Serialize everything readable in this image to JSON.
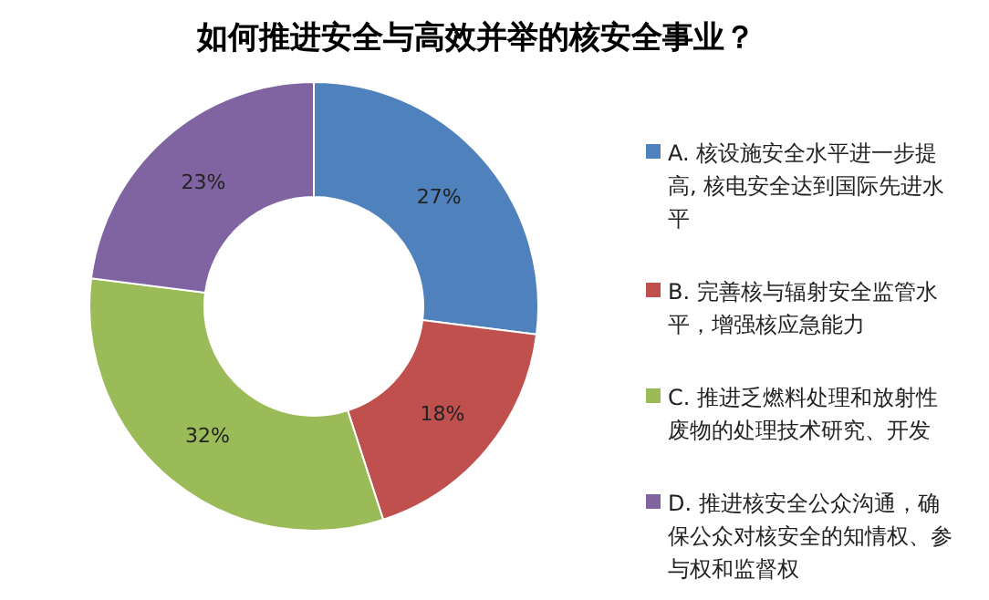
{
  "chart_data": {
    "type": "donut",
    "title": "如何推进安全与高效并举的核安全事业？",
    "categories": [
      "A. 核设施安全水平进一步提高, 核电安全达到国际先进水平",
      "B. 完善核与辐射安全监管水平，增强核应急能力",
      "C. 推进乏燃料处理和放射性废物的处理技术研究、开发",
      "D. 推进核安全公众沟通，确保公众对核安全的知情权、参与权和监督权"
    ],
    "values": [
      27,
      18,
      32,
      23
    ],
    "value_labels": [
      "27%",
      "18%",
      "32%",
      "23%"
    ],
    "colors": [
      "#4f81bd",
      "#c0504d",
      "#9bbb59",
      "#8064a2"
    ],
    "legend": "right"
  }
}
